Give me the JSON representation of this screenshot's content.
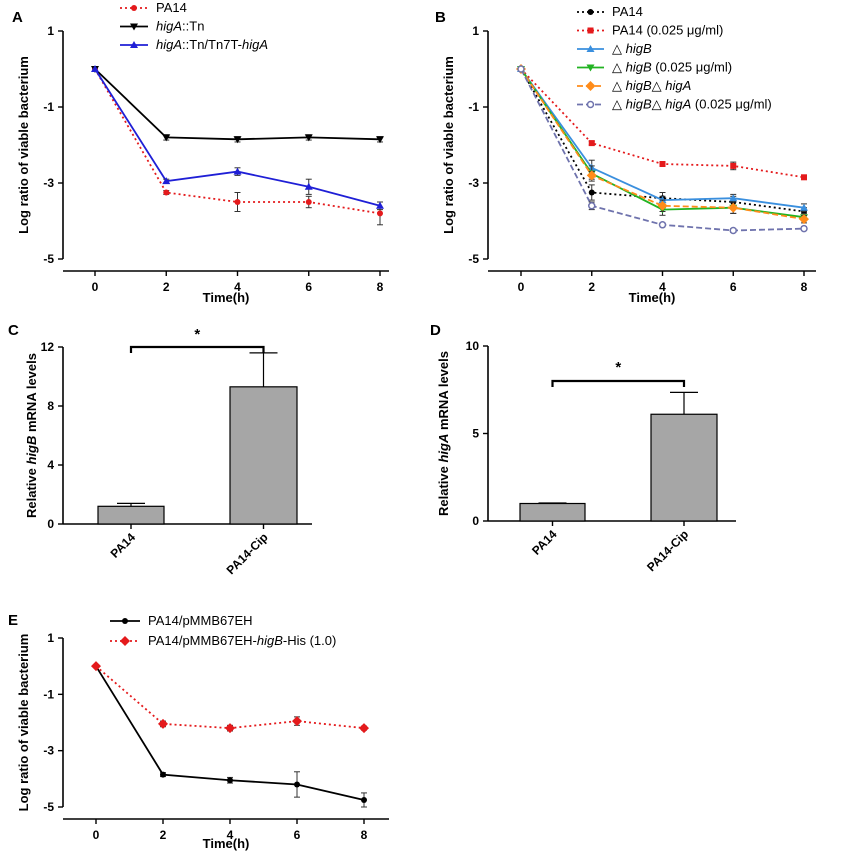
{
  "chart_data": [
    {
      "panel": "A",
      "type": "line",
      "xlabel": "Time(h)",
      "ylabel": "Log ratio of viable bacterium",
      "x": [
        0,
        2,
        4,
        6,
        8
      ],
      "xticks": [
        "0",
        "2",
        "4",
        "6",
        "8"
      ],
      "xlim": [
        -1,
        9
      ],
      "ylim": [
        -5,
        1
      ],
      "yticks": [
        "1",
        "-1",
        "-3",
        "-5"
      ],
      "legend_position": "top",
      "series": [
        {
          "name": "PA14",
          "legend_parts": [
            {
              "t": "PA14",
              "i": false
            }
          ],
          "color": "#e41a1c",
          "style": "dotted",
          "marker": "circle",
          "values": [
            0,
            -3.25,
            -3.5,
            -3.5,
            -3.8
          ],
          "errors": [
            0,
            0.05,
            0.25,
            0.15,
            0.3
          ]
        },
        {
          "name": "higA::Tn",
          "legend_parts": [
            {
              "t": "higA",
              "i": true
            },
            {
              "t": "::Tn",
              "i": false
            }
          ],
          "color": "#000000",
          "style": "solid",
          "marker": "triangle-down",
          "values": [
            0,
            -1.8,
            -1.85,
            -1.8,
            -1.85
          ],
          "errors": [
            0,
            0.07,
            0.07,
            0.07,
            0.07
          ]
        },
        {
          "name": "higA::Tn/Tn7T-higA",
          "legend_parts": [
            {
              "t": "higA",
              "i": true
            },
            {
              "t": "::Tn/Tn7T-",
              "i": false
            },
            {
              "t": "higA",
              "i": true
            }
          ],
          "color": "#1f1fd6",
          "style": "solid",
          "marker": "triangle-up",
          "values": [
            0,
            -2.95,
            -2.7,
            -3.1,
            -3.6
          ],
          "errors": [
            0,
            0.05,
            0.1,
            0.2,
            0.1
          ]
        }
      ]
    },
    {
      "panel": "B",
      "type": "line",
      "xlabel": "Time(h)",
      "ylabel": "Log ratio of viable bacterium",
      "x": [
        0,
        2,
        4,
        6,
        8
      ],
      "xticks": [
        "0",
        "2",
        "4",
        "6",
        "8"
      ],
      "xlim": [
        -1,
        9
      ],
      "ylim": [
        -5,
        1
      ],
      "yticks": [
        "1",
        "-1",
        "-3",
        "-5"
      ],
      "legend_position": "top-right",
      "series": [
        {
          "name": "PA14",
          "legend_parts": [
            {
              "t": "PA14",
              "i": false
            }
          ],
          "color": "#000000",
          "style": "dotted",
          "marker": "circle",
          "values": [
            0,
            -3.25,
            -3.4,
            -3.5,
            -3.75
          ],
          "errors": [
            0,
            0.2,
            0.15,
            0.15,
            0.1
          ]
        },
        {
          "name": "PA14 (0.025 μg/ml)",
          "legend_parts": [
            {
              "t": "PA14 (0.025 μg/ml)",
              "i": false
            }
          ],
          "color": "#e41a1c",
          "style": "dotted",
          "marker": "square",
          "values": [
            0,
            -1.95,
            -2.5,
            -2.55,
            -2.85
          ],
          "errors": [
            0,
            0.05,
            0.05,
            0.1,
            0.05
          ]
        },
        {
          "name": "△ higB",
          "legend_parts": [
            {
              "t": "△ ",
              "i": false
            },
            {
              "t": "higB",
              "i": true
            }
          ],
          "color": "#3a8fde",
          "style": "solid",
          "marker": "triangle-up",
          "values": [
            0,
            -2.6,
            -3.45,
            -3.4,
            -3.65
          ],
          "errors": [
            0,
            0.2,
            0.1,
            0.1,
            0.1
          ]
        },
        {
          "name": "△ higB (0.025 μg/ml)",
          "legend_parts": [
            {
              "t": "△ ",
              "i": false
            },
            {
              "t": "higB",
              "i": true
            },
            {
              "t": " (0.025 μg/ml)",
              "i": false
            }
          ],
          "color": "#22b322",
          "style": "solid",
          "marker": "triangle-down",
          "values": [
            0,
            -2.75,
            -3.7,
            -3.65,
            -3.9
          ],
          "errors": [
            0,
            0.2,
            0.15,
            0.15,
            0.1
          ]
        },
        {
          "name": "△ higB△ higA",
          "legend_parts": [
            {
              "t": "△ ",
              "i": false
            },
            {
              "t": "higB",
              "i": true
            },
            {
              "t": "△ ",
              "i": false
            },
            {
              "t": "higA",
              "i": true
            }
          ],
          "color": "#ff8c1a",
          "style": "dashed",
          "marker": "diamond",
          "values": [
            0,
            -2.8,
            -3.6,
            -3.65,
            -3.95
          ],
          "errors": [
            0,
            0.1,
            0.15,
            0.15,
            0.1
          ]
        },
        {
          "name": "△ higB△ higA (0.025 μg/ml)",
          "legend_parts": [
            {
              "t": "△ ",
              "i": false
            },
            {
              "t": "higB",
              "i": true
            },
            {
              "t": "△ ",
              "i": false
            },
            {
              "t": "higA",
              "i": true
            },
            {
              "t": " (0.025 μg/ml)",
              "i": false
            }
          ],
          "color": "#6f73ad",
          "style": "dashed",
          "marker": "circle-open",
          "values": [
            0,
            -3.6,
            -4.1,
            -4.25,
            -4.2
          ],
          "errors": [
            0,
            0.1,
            0.05,
            0.05,
            0.05
          ]
        }
      ]
    },
    {
      "panel": "C",
      "type": "bar",
      "categories": [
        "PA14",
        "PA14-Cip"
      ],
      "values": [
        1.2,
        9.3
      ],
      "errors": [
        0.2,
        2.3
      ],
      "ylabel_parts": [
        {
          "t": "Relative ",
          "i": false
        },
        {
          "t": "higB",
          "i": true
        },
        {
          "t": "  mRNA levels",
          "i": false
        }
      ],
      "ylim": [
        0,
        12
      ],
      "yticks": [
        "0",
        "4",
        "8",
        "12"
      ],
      "bar_color": "#a6a6a6",
      "significance": "*"
    },
    {
      "panel": "D",
      "type": "bar",
      "categories": [
        "PA14",
        "PA14-Cip"
      ],
      "values": [
        1.0,
        6.1
      ],
      "errors": [
        0.03,
        1.25
      ],
      "ylabel_parts": [
        {
          "t": "Relative ",
          "i": false
        },
        {
          "t": "higA",
          "i": true
        },
        {
          "t": "  mRNA levels",
          "i": false
        }
      ],
      "ylim": [
        0,
        10
      ],
      "yticks": [
        "0",
        "5",
        "10"
      ],
      "bar_color": "#a6a6a6",
      "significance": "*"
    },
    {
      "panel": "E",
      "type": "line",
      "xlabel": "Time(h)",
      "ylabel": "Log ratio of viable bacterium",
      "x": [
        0,
        2,
        4,
        6,
        8
      ],
      "xticks": [
        "0",
        "2",
        "4",
        "6",
        "8"
      ],
      "xlim": [
        -1,
        9
      ],
      "ylim": [
        -5,
        1
      ],
      "yticks": [
        "1",
        "-1",
        "-3",
        "-5"
      ],
      "legend_position": "top",
      "series": [
        {
          "name": "PA14/pMMB67EH",
          "legend_parts": [
            {
              "t": "PA14/pMMB67EH",
              "i": false
            }
          ],
          "color": "#000000",
          "style": "solid",
          "marker": "circle",
          "values": [
            0,
            -3.85,
            -4.05,
            -4.2,
            -4.75
          ],
          "errors": [
            0,
            0.07,
            0.1,
            0.45,
            0.25
          ]
        },
        {
          "name": "PA14/pMMB67EH-higB-His (1.0)",
          "legend_parts": [
            {
              "t": "PA14/pMMB67EH-",
              "i": false
            },
            {
              "t": "higB",
              "i": true
            },
            {
              "t": "-His (1.0)",
              "i": false
            }
          ],
          "color": "#e41a1c",
          "style": "dotted",
          "marker": "diamond",
          "values": [
            0,
            -2.05,
            -2.2,
            -1.95,
            -2.2
          ],
          "errors": [
            0,
            0.1,
            0.1,
            0.15,
            0.07
          ]
        }
      ]
    }
  ]
}
